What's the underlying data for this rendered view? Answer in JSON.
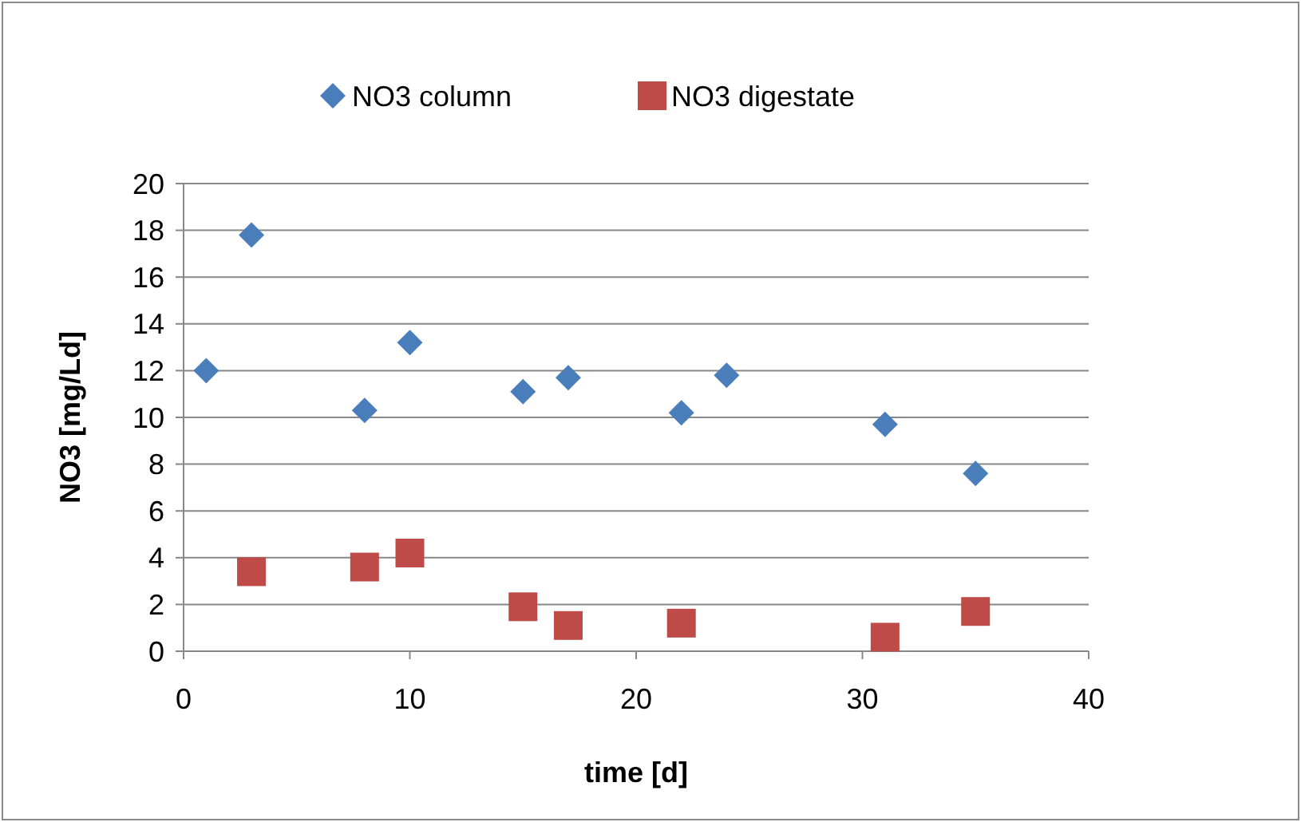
{
  "chart_data": {
    "type": "scatter",
    "xlabel": "time [d]",
    "ylabel": "NO3 [mg/Ld]",
    "xlim": [
      0,
      40
    ],
    "xticks": [
      0,
      10,
      20,
      30,
      40
    ],
    "ylim": [
      0,
      20
    ],
    "yticks": [
      0,
      2,
      4,
      6,
      8,
      10,
      12,
      14,
      16,
      18,
      20
    ],
    "grid": "y",
    "legend": "top",
    "series": [
      {
        "name": "NO3 column",
        "color": "#4a7ebb",
        "marker": "diamond",
        "x": [
          1,
          3,
          8,
          10,
          15,
          17,
          22,
          24,
          31,
          35
        ],
        "values": [
          12.0,
          17.8,
          10.3,
          13.2,
          11.1,
          11.7,
          10.2,
          11.8,
          9.7,
          7.6
        ]
      },
      {
        "name": "NO3 digestate",
        "color": "#be4b48",
        "marker": "square",
        "x": [
          3,
          8,
          10,
          15,
          17,
          22,
          31,
          35
        ],
        "values": [
          3.4,
          3.6,
          4.2,
          1.9,
          1.1,
          1.2,
          0.6,
          1.7
        ]
      }
    ]
  }
}
